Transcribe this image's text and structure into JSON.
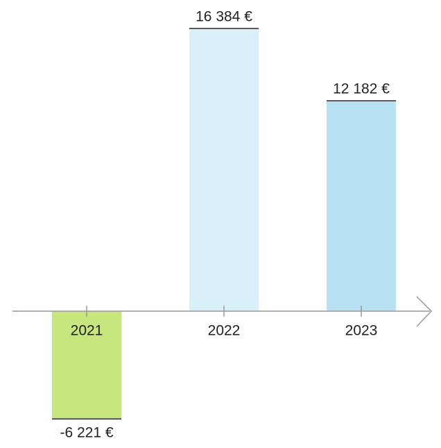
{
  "chart_data": {
    "type": "bar",
    "categories": [
      "2021",
      "2022",
      "2023"
    ],
    "values": [
      -6221,
      16384,
      12182
    ],
    "value_labels": [
      "-6 221 €",
      "16 384 €",
      "12 182 €"
    ],
    "colors": [
      "#c8e67e",
      "#daf0f8",
      "#b8e2f2"
    ]
  }
}
